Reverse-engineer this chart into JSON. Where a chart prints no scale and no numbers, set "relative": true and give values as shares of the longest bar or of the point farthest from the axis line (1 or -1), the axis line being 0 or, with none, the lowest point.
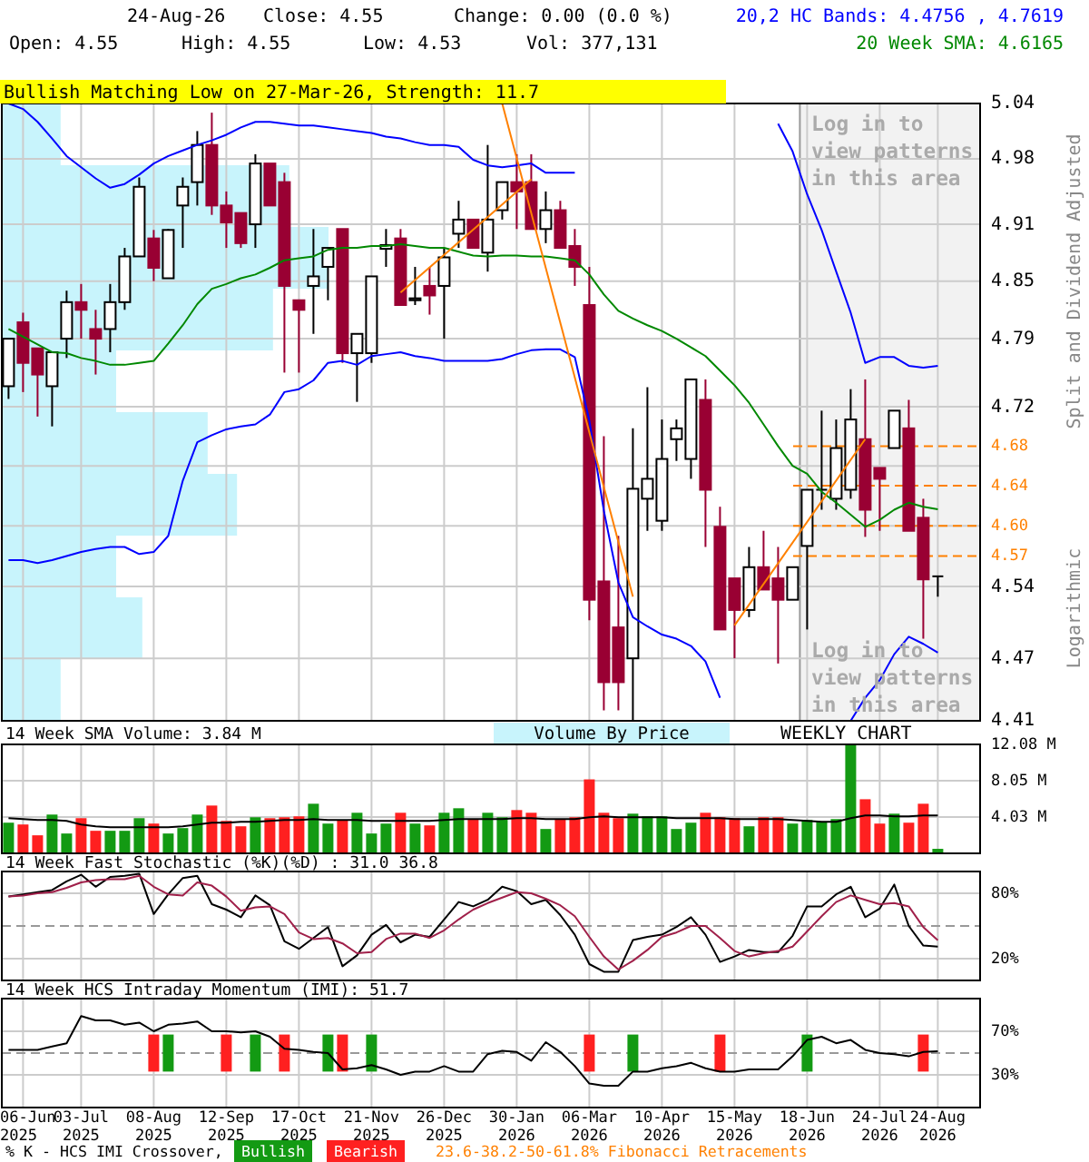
{
  "chart_data": [
    {
      "type": "candlestick",
      "ylabel": "Split and Dividend Adjusted",
      "log": true,
      "grid": true,
      "tick_labels": "y",
      "legend": "top right",
      "annotations": [
        "24-Aug-26",
        "Close: 4.55",
        "Change: 0.00 (0.0 %)",
        "Open: 4.55",
        "High: 4.55",
        "Low: 4.53",
        "Vol: 377,131",
        "Bullish Matching Low on 27-Mar-26, Strength: 11.7",
        "Log in to view patterns in this area",
        "Log in to view patterns in this area",
        "Logarithmic",
        "Volume By Price"
      ],
      "categories": [
        null,
        null,
        null,
        null,
        null,
        null,
        null,
        null,
        null,
        null,
        null,
        null,
        null,
        null,
        null,
        null,
        null,
        null,
        null,
        null,
        null,
        null,
        null,
        null,
        null,
        null,
        null,
        null,
        null,
        null,
        null,
        null,
        null,
        null,
        null,
        null,
        null,
        null,
        null,
        null,
        null,
        null,
        null,
        null,
        null,
        null,
        null,
        null,
        null,
        null,
        null,
        null,
        null,
        null,
        null,
        null,
        null,
        null,
        null,
        null,
        null,
        null,
        null,
        null,
        null
      ],
      "ohlc": [
        [
          4.741,
          4.79,
          4.728,
          4.79
        ],
        [
          4.807,
          4.817,
          4.735,
          4.765
        ],
        [
          4.78,
          4.78,
          4.71,
          4.753
        ],
        [
          4.741,
          4.776,
          4.7,
          4.776
        ],
        [
          4.79,
          4.84,
          4.77,
          4.828
        ],
        [
          4.828,
          4.847,
          4.79,
          4.82
        ],
        [
          4.8,
          4.82,
          4.753,
          4.79
        ],
        [
          4.8,
          4.847,
          4.776,
          4.828
        ],
        [
          4.828,
          4.885,
          4.82,
          4.876
        ],
        [
          4.876,
          4.96,
          4.876,
          4.95
        ],
        [
          4.895,
          4.904,
          4.85,
          4.864
        ],
        [
          4.853,
          4.905,
          4.853,
          4.904
        ],
        [
          4.93,
          4.96,
          4.885,
          4.95
        ],
        [
          4.955,
          5.01,
          4.93,
          4.995
        ],
        [
          4.995,
          5.03,
          4.92,
          4.93
        ],
        [
          4.93,
          4.945,
          4.885,
          4.912
        ],
        [
          4.922,
          4.922,
          4.885,
          4.89
        ],
        [
          4.91,
          4.985,
          4.885,
          4.975
        ],
        [
          4.975,
          4.975,
          4.93,
          4.93
        ],
        [
          4.955,
          4.965,
          4.755,
          4.845
        ],
        [
          4.83,
          4.83,
          4.755,
          4.82
        ],
        [
          4.845,
          4.905,
          4.795,
          4.855
        ],
        [
          4.865,
          4.885,
          4.83,
          4.885
        ],
        [
          4.905,
          4.905,
          4.765,
          4.775
        ],
        [
          4.775,
          4.795,
          4.725,
          4.795
        ],
        [
          4.775,
          4.855,
          4.765,
          4.855
        ],
        [
          4.884,
          4.905,
          4.865,
          4.888
        ],
        [
          4.895,
          4.905,
          4.825,
          4.825
        ],
        [
          4.83,
          4.865,
          4.825,
          4.832
        ],
        [
          4.845,
          4.865,
          4.815,
          4.835
        ],
        [
          4.845,
          4.885,
          4.79,
          4.875
        ],
        [
          4.9,
          4.935,
          4.885,
          4.915
        ],
        [
          4.915,
          4.915,
          4.885,
          4.885
        ],
        [
          4.88,
          4.995,
          4.86,
          4.915
        ],
        [
          4.925,
          4.955,
          4.915,
          4.955
        ],
        [
          4.955,
          4.985,
          4.905,
          4.945
        ],
        [
          4.955,
          4.985,
          4.905,
          4.905
        ],
        [
          4.905,
          4.945,
          4.89,
          4.925
        ],
        [
          4.925,
          4.935,
          4.885,
          4.885
        ],
        [
          4.887,
          4.905,
          4.845,
          4.865
        ],
        [
          4.825,
          4.865,
          4.507,
          4.527
        ],
        [
          4.545,
          4.69,
          4.42,
          4.447
        ],
        [
          4.5,
          4.59,
          4.42,
          4.447
        ],
        [
          4.47,
          4.698,
          4.41,
          4.637
        ],
        [
          4.627,
          4.74,
          4.595,
          4.647
        ],
        [
          4.605,
          4.707,
          4.595,
          4.667
        ],
        [
          4.687,
          4.707,
          4.665,
          4.698
        ],
        [
          4.667,
          4.748,
          4.647,
          4.748
        ],
        [
          4.727,
          4.748,
          4.579,
          4.636
        ],
        [
          4.599,
          4.619,
          4.498,
          4.498
        ],
        [
          4.548,
          4.548,
          4.47,
          4.517
        ],
        [
          4.517,
          4.579,
          4.51,
          4.559
        ],
        [
          4.559,
          4.595,
          4.537,
          4.537
        ],
        [
          4.548,
          4.579,
          4.465,
          4.527
        ],
        [
          4.527,
          4.559,
          4.527,
          4.559
        ],
        [
          4.58,
          4.636,
          4.498,
          4.636
        ],
        [
          4.636,
          4.716,
          4.616,
          4.636
        ],
        [
          4.627,
          4.707,
          4.616,
          4.678
        ],
        [
          4.636,
          4.738,
          4.627,
          4.707
        ],
        [
          4.687,
          4.748,
          4.589,
          4.616
        ],
        [
          4.658,
          4.658,
          4.595,
          4.647
        ],
        [
          4.678,
          4.716,
          4.678,
          4.716
        ],
        [
          4.698,
          4.727,
          4.595,
          4.595
        ],
        [
          4.608,
          4.627,
          4.489,
          4.547
        ],
        [
          4.55,
          4.55,
          4.53,
          4.55
        ]
      ],
      "series": [
        {
          "type": "line",
          "name": "20,2 HC Bands: 4.4756 , 4.7619",
          "color": "#0000ff",
          "values": [
            5.04,
            5.034,
            5.02,
            5.002,
            4.983,
            4.971,
            4.959,
            4.949,
            4.953,
            4.963,
            4.975,
            4.983,
            4.989,
            4.995,
            5.0,
            5.006,
            5.014,
            5.02,
            5.02,
            5.018,
            5.016,
            5.016,
            5.014,
            5.012,
            5.01,
            5.008,
            5.004,
            5.002,
            4.998,
            4.995,
            4.995,
            4.993,
            4.979,
            4.973,
            4.971,
            4.973,
            4.975,
            4.965,
            4.965,
            4.965,
            null,
            null,
            null,
            null,
            null,
            null,
            null,
            null,
            null,
            null,
            null,
            null,
            null,
            5.018,
            4.988,
            4.942,
            4.904,
            4.86,
            4.817,
            4.765,
            4.771,
            4.771,
            4.762,
            4.76,
            4.7619
          ]
        },
        {
          "type": "line",
          "color": "#0000ff",
          "values": [
            4.566,
            4.566,
            4.563,
            4.566,
            4.57,
            4.574,
            4.577,
            4.579,
            4.579,
            4.572,
            4.574,
            4.59,
            4.645,
            4.684,
            4.691,
            4.697,
            4.7,
            4.702,
            4.712,
            4.735,
            4.738,
            4.747,
            4.765,
            4.767,
            4.763,
            4.772,
            4.774,
            4.776,
            4.772,
            4.77,
            4.767,
            4.767,
            4.767,
            4.767,
            4.769,
            4.774,
            4.778,
            4.779,
            4.779,
            4.771,
            4.706,
            4.615,
            4.544,
            4.51,
            4.501,
            4.493,
            4.489,
            4.482,
            4.467,
            4.432,
            null,
            null,
            null,
            null,
            null,
            null,
            null,
            null,
            4.41,
            4.432,
            4.449,
            4.474,
            4.491,
            4.484,
            4.4756
          ]
        },
        {
          "type": "line",
          "name": "20 Week SMA: 4.6165",
          "color": "#008800",
          "values": [
            4.8,
            4.792,
            4.784,
            4.776,
            4.775,
            4.77,
            4.767,
            4.763,
            4.763,
            4.765,
            4.767,
            4.785,
            4.804,
            4.826,
            4.842,
            4.847,
            4.853,
            4.857,
            4.864,
            4.872,
            4.874,
            4.876,
            4.883,
            4.885,
            4.885,
            4.887,
            4.887,
            4.889,
            4.887,
            4.885,
            4.885,
            4.881,
            4.877,
            4.876,
            4.877,
            4.877,
            4.876,
            4.876,
            4.874,
            4.872,
            4.857,
            4.836,
            4.819,
            4.811,
            4.804,
            4.798,
            4.79,
            4.781,
            4.772,
            4.757,
            4.742,
            4.724,
            4.702,
            4.68,
            4.66,
            4.652,
            4.634,
            4.623,
            4.611,
            4.599,
            4.606,
            4.616,
            4.623,
            4.619,
            4.6165
          ]
        },
        {
          "type": "line",
          "color": "#ff8000",
          "values": [
            null,
            null,
            null,
            null,
            null,
            null,
            null,
            null,
            null,
            null,
            null,
            null,
            null,
            null,
            null,
            null,
            null,
            null,
            null,
            null,
            null,
            null,
            null,
            null,
            null,
            null,
            null,
            4.838,
            null,
            null,
            null,
            null,
            null,
            null,
            null,
            null,
            4.958,
            null,
            null,
            null,
            null,
            null,
            null,
            null,
            null,
            null,
            null,
            null,
            null,
            null,
            null,
            null,
            null,
            null,
            null,
            null,
            null,
            null,
            null,
            null,
            null,
            null,
            null,
            null,
            null
          ]
        },
        {
          "type": "line",
          "color": "#ff8000",
          "values": [
            null,
            null,
            null,
            null,
            null,
            null,
            null,
            null,
            null,
            null,
            null,
            null,
            null,
            null,
            null,
            null,
            null,
            null,
            null,
            null,
            null,
            null,
            null,
            null,
            null,
            null,
            null,
            null,
            null,
            null,
            null,
            null,
            null,
            null,
            5.04,
            null,
            null,
            null,
            null,
            null,
            null,
            null,
            null,
            4.53,
            null,
            null,
            null,
            null,
            null,
            null,
            null,
            null,
            null,
            null,
            null,
            null,
            null,
            null,
            null,
            null,
            null,
            null,
            null,
            null,
            null
          ]
        },
        {
          "type": "line",
          "color": "#ff8000",
          "values": [
            null,
            null,
            null,
            null,
            null,
            null,
            null,
            null,
            null,
            null,
            null,
            null,
            null,
            null,
            null,
            null,
            null,
            null,
            null,
            null,
            null,
            null,
            null,
            null,
            null,
            null,
            null,
            null,
            null,
            null,
            null,
            null,
            null,
            null,
            null,
            null,
            null,
            null,
            null,
            null,
            null,
            null,
            null,
            null,
            null,
            null,
            null,
            null,
            null,
            null,
            4.502,
            null,
            null,
            null,
            null,
            null,
            null,
            null,
            null,
            4.687,
            null,
            null,
            null,
            null,
            null
          ]
        }
      ],
      "ref_lines": [
        {
          "axis": "y",
          "value": 4.68,
          "label": "4.68",
          "color": "#ff8000",
          "line_style": "dashed"
        },
        {
          "axis": "y",
          "value": 4.64,
          "label": "4.64",
          "color": "#ff8000",
          "line_style": "dashed"
        },
        {
          "axis": "y",
          "value": 4.6,
          "label": "4.60",
          "color": "#ff8000",
          "line_style": "dashed"
        },
        {
          "axis": "y",
          "value": 4.57,
          "label": "4.57",
          "color": "#ff8000",
          "line_style": "dashed"
        }
      ],
      "ylim": [
        4.41,
        5.04
      ],
      "yticks": [
        5.04,
        4.98,
        4.91,
        4.85,
        4.79,
        4.72,
        {
          "value": 4.66,
          "label": null
        },
        {
          "value": 4.6,
          "label": null
        },
        4.54,
        4.47,
        4.41
      ]
    },
    {
      "type": "bar",
      "orientation": "horizontal",
      "relative": true,
      "tick_labels": false,
      "color": "#c8f4fc",
      "categories": [
        null,
        null,
        null,
        null,
        null,
        null,
        null,
        null,
        null,
        null
      ],
      "values": [
        0.18,
        0.88,
        1,
        0.83,
        0.35,
        0.63,
        0.72,
        0.35,
        0.43,
        0.18
      ]
    },
    {
      "type": "bar",
      "title": "14 Week SMA Volume: 3.84 M",
      "annotations": [
        "WEEKLY CHART"
      ],
      "grid": true,
      "tick_labels": "y",
      "categories": [
        null,
        null,
        null,
        null,
        null,
        null,
        null,
        null,
        null,
        null,
        null,
        null,
        null,
        null,
        null,
        null,
        null,
        null,
        null,
        null,
        null,
        null,
        null,
        null,
        null,
        null,
        null,
        null,
        null,
        null,
        null,
        null,
        null,
        null,
        null,
        null,
        null,
        null,
        null,
        null,
        null,
        null,
        null,
        null,
        null,
        null,
        null,
        null,
        null,
        null,
        null,
        null,
        null,
        null,
        null,
        null,
        null,
        null,
        null,
        null,
        null,
        null,
        null,
        null,
        null
      ],
      "series": [
        {
          "type": "bar",
          "values": [
            3.4,
            3.2,
            2.0,
            4.3,
            2.2,
            3.9,
            2.5,
            2.5,
            2.5,
            3.9,
            3.3,
            2.2,
            2.8,
            4.3,
            5.3,
            3.6,
            3.0,
            4.0,
            3.9,
            4.0,
            4.1,
            5.5,
            3.3,
            3.7,
            4.5,
            2.2,
            3.3,
            4.5,
            3.3,
            3.1,
            4.5,
            5.0,
            3.8,
            4.5,
            4.0,
            4.8,
            4.5,
            2.7,
            3.8,
            4.0,
            8.2,
            4.5,
            3.9,
            4.4,
            4.1,
            4.1,
            2.7,
            3.4,
            4.5,
            4.0,
            3.9,
            3.0,
            4.0,
            4.0,
            3.3,
            3.7,
            3.5,
            3.8,
            12.08,
            6.0,
            3.3,
            4.4,
            3.4,
            5.5,
            0.5
          ],
          "colors": [
            "#139a13",
            "#ff2020",
            "#ff2020",
            "#139a13",
            "#139a13",
            "#ff2020",
            "#ff2020",
            "#139a13",
            "#139a13",
            "#139a13",
            "#ff2020",
            "#139a13",
            "#139a13",
            "#139a13",
            "#ff2020",
            "#ff2020",
            "#ff2020",
            "#139a13",
            "#ff2020",
            "#ff2020",
            "#ff2020",
            "#139a13",
            "#139a13",
            "#ff2020",
            "#139a13",
            "#139a13",
            "#139a13",
            "#ff2020",
            "#139a13",
            "#ff2020",
            "#139a13",
            "#139a13",
            "#ff2020",
            "#139a13",
            "#139a13",
            "#ff2020",
            "#ff2020",
            "#139a13",
            "#ff2020",
            "#ff2020",
            "#ff2020",
            "#ff2020",
            "#ff2020",
            "#139a13",
            "#139a13",
            "#139a13",
            "#139a13",
            "#139a13",
            "#ff2020",
            "#ff2020",
            "#ff2020",
            "#139a13",
            "#ff2020",
            "#ff2020",
            "#139a13",
            "#139a13",
            "#139a13",
            "#139a13",
            "#139a13",
            "#ff2020",
            "#ff2020",
            "#139a13",
            "#ff2020",
            "#ff2020",
            "#139a13"
          ]
        },
        {
          "type": "line",
          "color": "#000000",
          "values": [
            3.9,
            3.8,
            3.7,
            3.7,
            3.6,
            3.2,
            3.0,
            2.9,
            2.9,
            2.9,
            2.9,
            2.9,
            3.0,
            3.2,
            3.4,
            3.4,
            3.5,
            3.5,
            3.6,
            3.7,
            3.7,
            3.8,
            3.7,
            3.7,
            3.7,
            3.6,
            3.6,
            3.6,
            3.6,
            3.6,
            3.7,
            3.8,
            3.8,
            3.8,
            3.8,
            3.9,
            3.9,
            3.8,
            3.8,
            3.8,
            4.0,
            4.1,
            4.0,
            4.0,
            4.0,
            4.0,
            3.9,
            3.9,
            3.9,
            3.9,
            3.8,
            3.8,
            3.8,
            3.8,
            3.7,
            3.6,
            3.5,
            3.5,
            3.9,
            4.2,
            4.2,
            4.1,
            4.1,
            4.2,
            4.2
          ]
        }
      ],
      "ylim": [
        0,
        12.08
      ],
      "yticks": [
        {
          "value": 12.08,
          "label": "12.08 M"
        },
        {
          "value": 8.05,
          "label": "8.05 M"
        },
        {
          "value": 4.03,
          "label": "4.03 M"
        }
      ]
    },
    {
      "type": "line",
      "title": "14 Week Fast Stochastic (%K)(%D) : 31.0 36.8",
      "grid": true,
      "tick_labels": "y",
      "categories": [
        null,
        null,
        null,
        null,
        null,
        null,
        null,
        null,
        null,
        null,
        null,
        null,
        null,
        null,
        null,
        null,
        null,
        null,
        null,
        null,
        null,
        null,
        null,
        null,
        null,
        null,
        null,
        null,
        null,
        null,
        null,
        null,
        null,
        null,
        null,
        null,
        null,
        null,
        null,
        null,
        null,
        null,
        null,
        null,
        null,
        null,
        null,
        null,
        null,
        null,
        null,
        null,
        null,
        null,
        null,
        null,
        null,
        null,
        null,
        null,
        null,
        null,
        null,
        null,
        null
      ],
      "series": [
        {
          "color": "#000000",
          "values": [
            77,
            79,
            81,
            83,
            91,
            97,
            86,
            95,
            96,
            98,
            61,
            79,
            94,
            96,
            70,
            65,
            58,
            78,
            69,
            36,
            29,
            39,
            49,
            13,
            23,
            42,
            51,
            35,
            42,
            40,
            56,
            72,
            68,
            74,
            86,
            82,
            70,
            74,
            60,
            42,
            15,
            8,
            8,
            37,
            40,
            42,
            49,
            58,
            42,
            17,
            22,
            28,
            26,
            26,
            41,
            68,
            68,
            79,
            86,
            58,
            66,
            88,
            50,
            32,
            31.0
          ]
        },
        {
          "color": "#a0204a",
          "values": [
            77,
            78,
            80,
            81,
            85,
            90,
            92,
            93,
            93,
            96,
            86,
            79,
            78,
            90,
            87,
            77,
            64,
            67,
            68,
            61,
            44,
            38,
            39,
            34,
            25,
            26,
            38,
            43,
            43,
            39,
            46,
            56,
            65,
            71,
            76,
            81,
            80,
            75,
            69,
            59,
            40,
            22,
            10,
            18,
            28,
            40,
            44,
            50,
            50,
            39,
            27,
            22,
            25,
            27,
            31,
            45,
            59,
            72,
            78,
            74,
            70,
            71,
            68,
            49,
            36.8
          ]
        }
      ],
      "ref_lines": [
        {
          "axis": "y",
          "value": 50,
          "color": "#999999",
          "line_style": "dashed"
        }
      ],
      "ylim": [
        0,
        100
      ],
      "yticks": [
        {
          "value": 80,
          "label": "80%"
        },
        {
          "value": 20,
          "label": "20%"
        }
      ]
    },
    {
      "type": "line",
      "title": "14 Week HCS Intraday Momentum (IMI): 51.7",
      "grid": true,
      "legend": "bottom",
      "legend_title": "% K - HCS IMI Crossover,",
      "annotations": [
        "23.6-38.2-50-61.8% Fibonacci Retracements"
      ],
      "categories": [
        null,
        "06-Jun 2025",
        null,
        null,
        null,
        "03-Jul 2025",
        null,
        null,
        null,
        null,
        "08-Aug 2025",
        null,
        null,
        null,
        null,
        "12-Sep 2025",
        null,
        null,
        null,
        null,
        "17-Oct 2025",
        null,
        null,
        null,
        null,
        "21-Nov 2025",
        null,
        null,
        null,
        null,
        "26-Dec 2025",
        null,
        null,
        null,
        null,
        "30-Jan 2026",
        null,
        null,
        null,
        null,
        "06-Mar 2026",
        null,
        null,
        null,
        null,
        "10-Apr 2026",
        null,
        null,
        null,
        null,
        "15-May 2026",
        null,
        null,
        null,
        null,
        "18-Jun 2026",
        null,
        null,
        null,
        null,
        "24-Jul 2026",
        null,
        null,
        null,
        "24-Aug 2026"
      ],
      "series": [
        {
          "type": "bar",
          "name": "Bullish",
          "color": "#139a13",
          "values": [
            null,
            null,
            null,
            null,
            null,
            null,
            null,
            null,
            null,
            null,
            null,
            34,
            null,
            null,
            null,
            null,
            null,
            34,
            null,
            null,
            null,
            null,
            34,
            null,
            null,
            34,
            null,
            null,
            null,
            null,
            null,
            null,
            null,
            null,
            null,
            null,
            null,
            null,
            null,
            null,
            null,
            null,
            null,
            34,
            null,
            null,
            null,
            null,
            null,
            null,
            null,
            null,
            null,
            null,
            null,
            34,
            null,
            null,
            null,
            null,
            null,
            null,
            null,
            null,
            null
          ],
          "base": [
            null,
            null,
            null,
            null,
            null,
            null,
            null,
            null,
            null,
            null,
            null,
            33,
            null,
            null,
            null,
            null,
            null,
            33,
            null,
            null,
            null,
            null,
            33,
            null,
            null,
            33,
            null,
            null,
            null,
            null,
            null,
            null,
            null,
            null,
            null,
            null,
            null,
            null,
            null,
            null,
            null,
            null,
            null,
            33,
            null,
            null,
            null,
            null,
            null,
            null,
            null,
            null,
            null,
            null,
            null,
            33,
            null,
            null,
            null,
            null,
            null,
            null,
            null,
            null,
            null
          ]
        },
        {
          "type": "bar",
          "name": "Bearish",
          "color": "#ff2020",
          "values": [
            null,
            null,
            null,
            null,
            null,
            null,
            null,
            null,
            null,
            null,
            34,
            null,
            null,
            null,
            null,
            34,
            null,
            null,
            null,
            34,
            null,
            null,
            null,
            34,
            null,
            null,
            null,
            null,
            null,
            null,
            null,
            null,
            null,
            null,
            null,
            null,
            null,
            null,
            null,
            null,
            34,
            null,
            null,
            null,
            null,
            null,
            null,
            null,
            null,
            34,
            null,
            null,
            null,
            null,
            null,
            null,
            null,
            null,
            null,
            null,
            null,
            null,
            null,
            34,
            null
          ],
          "base": [
            null,
            null,
            null,
            null,
            null,
            null,
            null,
            null,
            null,
            null,
            33,
            null,
            null,
            null,
            null,
            33,
            null,
            null,
            null,
            33,
            null,
            null,
            null,
            33,
            null,
            null,
            null,
            null,
            null,
            null,
            null,
            null,
            null,
            null,
            null,
            null,
            null,
            null,
            null,
            null,
            33,
            null,
            null,
            null,
            null,
            null,
            null,
            null,
            null,
            33,
            null,
            null,
            null,
            null,
            null,
            null,
            null,
            null,
            null,
            null,
            null,
            null,
            null,
            33,
            null
          ]
        },
        {
          "type": "line",
          "color": "#000000",
          "values": [
            53,
            53,
            53,
            56,
            59,
            84,
            80,
            80,
            76,
            78,
            70,
            76,
            77,
            79,
            70,
            70,
            69,
            70,
            65,
            54,
            53,
            51,
            50,
            35,
            36,
            39,
            35,
            30,
            33,
            33,
            38,
            33,
            33,
            49,
            52,
            51,
            43,
            60,
            51,
            38,
            22,
            20,
            20,
            33,
            33,
            36,
            38,
            41,
            36,
            33,
            33,
            35,
            35,
            35,
            47,
            62,
            65,
            59,
            62,
            53,
            50,
            49,
            47,
            51,
            51.7
          ]
        }
      ],
      "ref_lines": [
        {
          "axis": "y",
          "value": 50,
          "color": "#999999",
          "line_style": "dashed"
        }
      ],
      "ylim": [
        0,
        100
      ],
      "yticks": [
        {
          "value": 70,
          "label": "70%"
        },
        {
          "value": 30,
          "label": "30%"
        }
      ]
    }
  ]
}
